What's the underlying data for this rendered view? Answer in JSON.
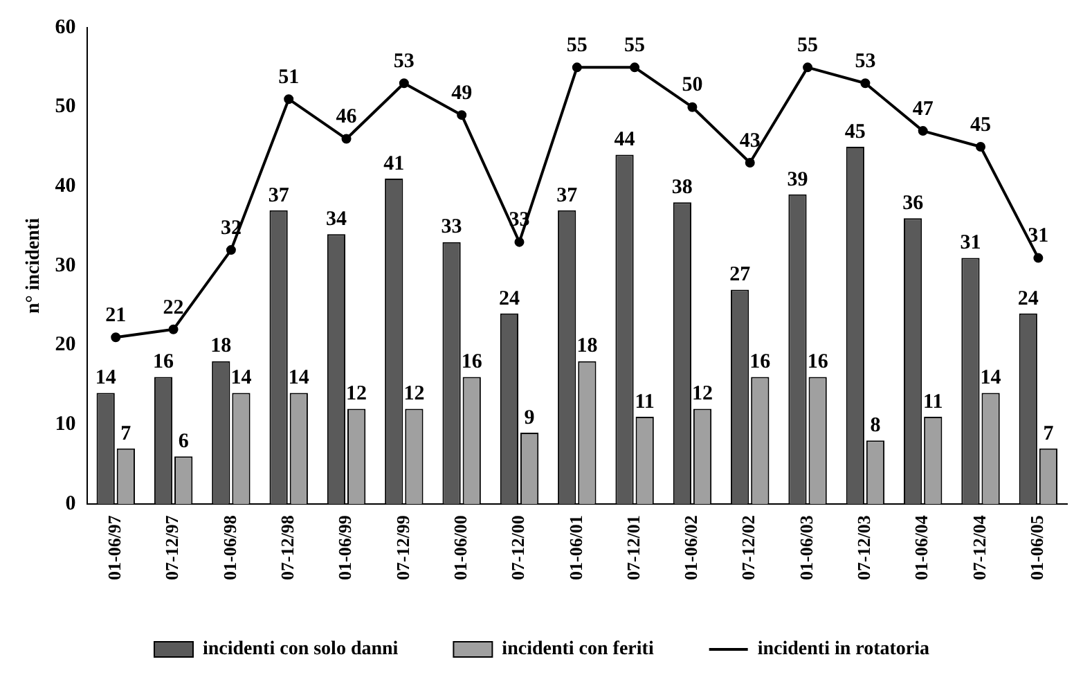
{
  "chart_data": {
    "type": "bar",
    "ylabel": "n° incidenti",
    "categories": [
      "01-06/97",
      "07-12/97",
      "01-06/98",
      "07-12/98",
      "01-06/99",
      "07-12/99",
      "01-06/00",
      "07-12/00",
      "01-06/01",
      "07-12/01",
      "01-06/02",
      "07-12/02",
      "01-06/03",
      "07-12/03",
      "01-06/04",
      "07-12/04",
      "01-06/05"
    ],
    "series": [
      {
        "name": "incidenti con solo danni",
        "color": "#5a5a5a",
        "values": [
          14,
          16,
          18,
          37,
          34,
          41,
          33,
          24,
          37,
          44,
          38,
          27,
          39,
          45,
          36,
          31,
          24
        ]
      },
      {
        "name": "incidenti con feriti",
        "color": "#a0a0a0",
        "values": [
          7,
          6,
          14,
          14,
          12,
          12,
          16,
          9,
          18,
          11,
          12,
          16,
          16,
          8,
          11,
          14,
          7
        ]
      },
      {
        "name": "incidenti in rotatoria",
        "type": "line",
        "color": "#000000",
        "marker": "circle",
        "values": [
          21,
          22,
          32,
          51,
          46,
          53,
          49,
          33,
          55,
          55,
          50,
          43,
          55,
          53,
          47,
          45,
          31
        ]
      }
    ],
    "ylim": [
      0,
      60
    ],
    "yticks": [
      0,
      10,
      20,
      30,
      40,
      50,
      60
    ],
    "grid": false,
    "legend": "bottom",
    "data_labels": true
  }
}
